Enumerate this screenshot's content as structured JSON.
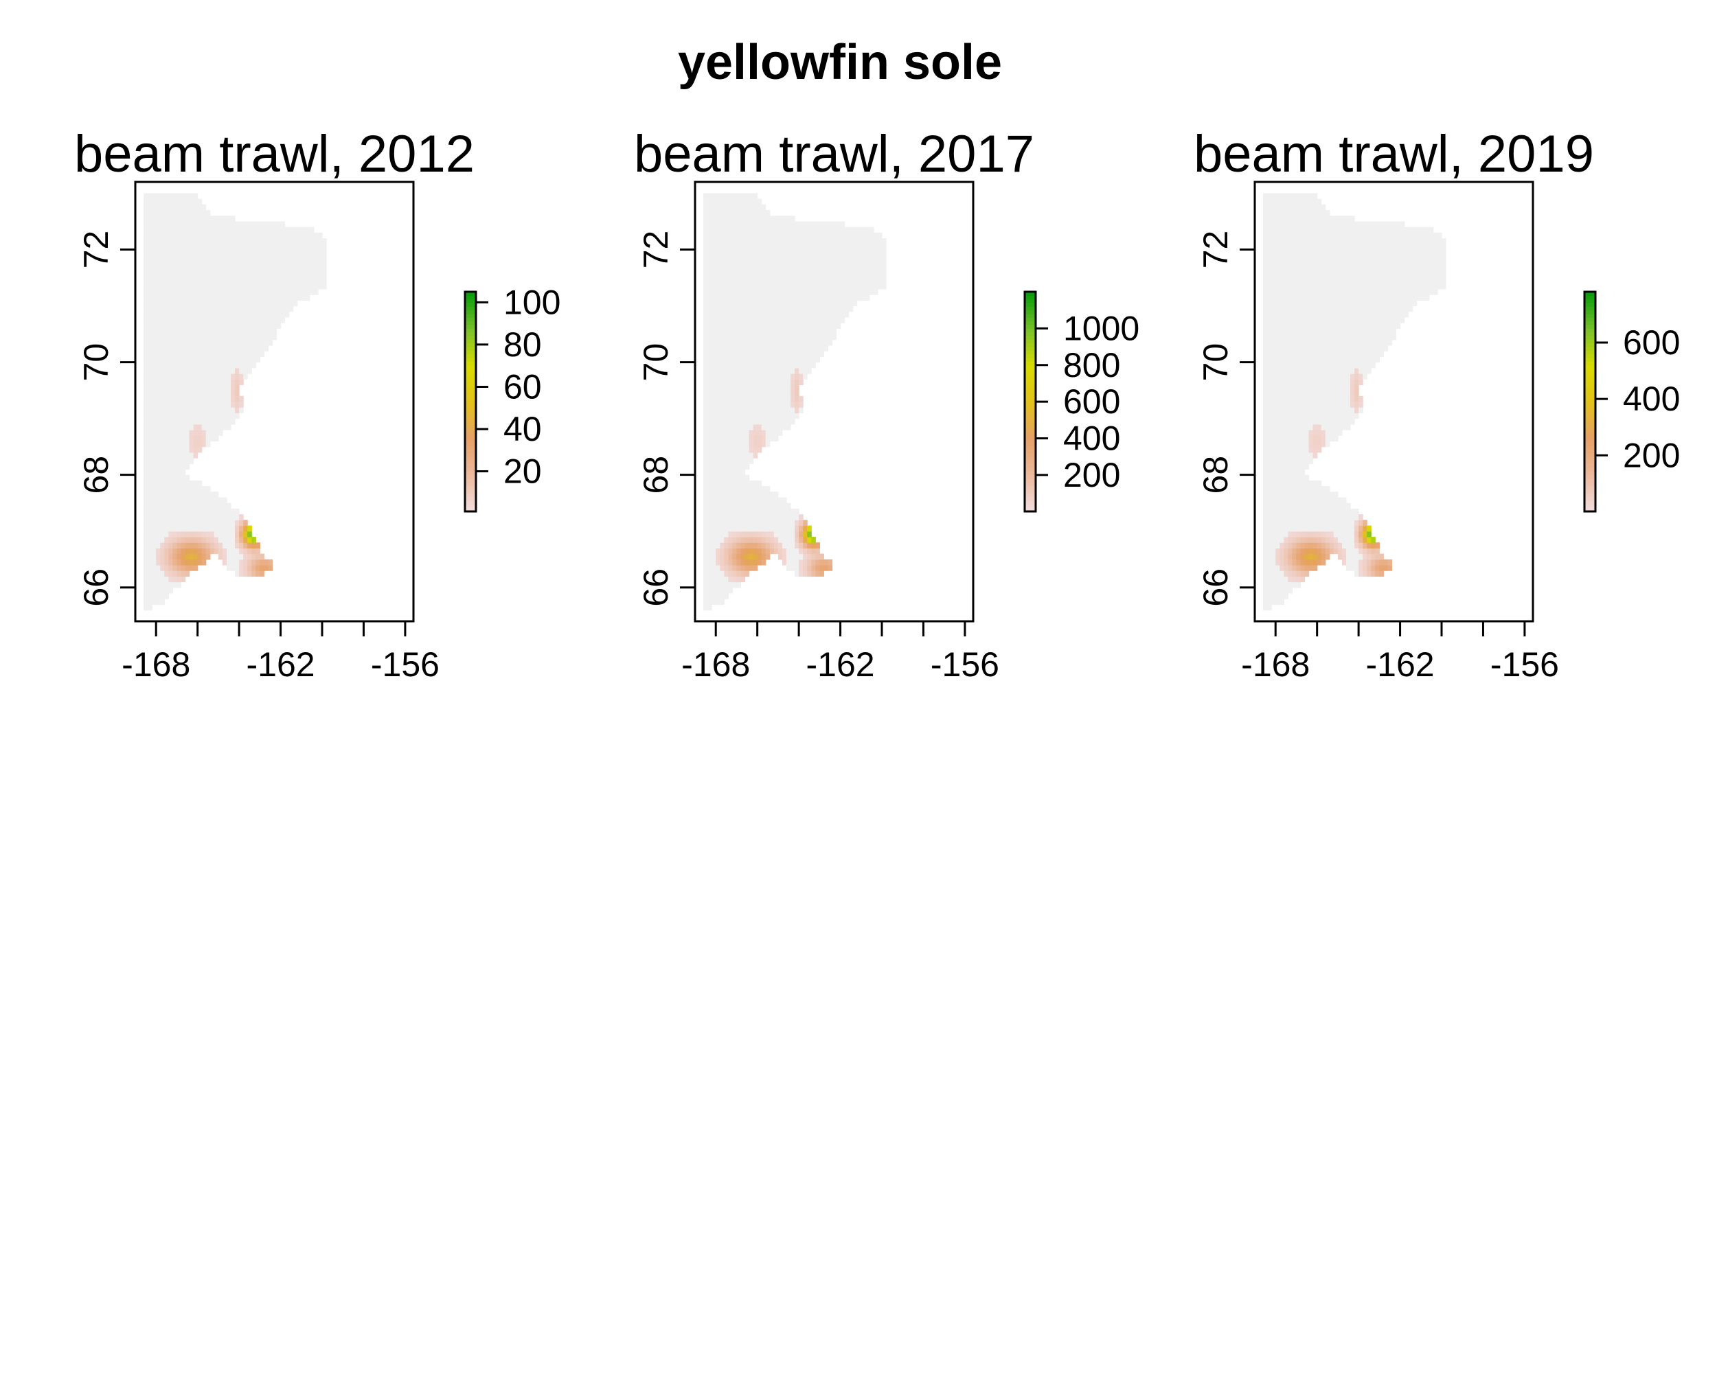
{
  "chart_data": {
    "type": "heatmap",
    "title": "yellowfin sole",
    "grid": false,
    "colors": {
      "background_cell": "#f0f0f0",
      "ramp": [
        "#f2dcdc",
        "#ebb89a",
        "#e6a066",
        "#e2c21a",
        "#d8dc00",
        "#79c12a",
        "#0a9d0a"
      ],
      "frame": "#000000"
    },
    "panels": [
      {
        "title": "beam trawl, 2012",
        "xlim": [
          -169,
          -155.6
        ],
        "ylim": [
          65.4,
          73.2
        ],
        "x_ticks": [
          -168,
          -166,
          -164,
          -162,
          -160,
          -158,
          -156
        ],
        "x_tick_labels": [
          "-168",
          "",
          "",
          "-162",
          "",
          "",
          "-156"
        ],
        "y_ticks": [
          66,
          68,
          70,
          72
        ],
        "y_tick_labels": [
          "66",
          "68",
          "70",
          "72"
        ],
        "legend": {
          "range": [
            1,
            105
          ],
          "ticks": [
            20,
            40,
            60,
            80,
            100
          ],
          "tick_labels": [
            "20",
            "40",
            "60",
            "80",
            "100"
          ]
        }
      },
      {
        "title": "beam trawl, 2017",
        "xlim": [
          -169,
          -155.6
        ],
        "ylim": [
          65.4,
          73.2
        ],
        "x_ticks": [
          -168,
          -166,
          -164,
          -162,
          -160,
          -158,
          -156
        ],
        "x_tick_labels": [
          "-168",
          "",
          "",
          "-162",
          "",
          "",
          "-156"
        ],
        "y_ticks": [
          66,
          68,
          70,
          72
        ],
        "y_tick_labels": [
          "66",
          "68",
          "70",
          "72"
        ],
        "legend": {
          "range": [
            1,
            1200
          ],
          "ticks": [
            200,
            400,
            600,
            800,
            1000
          ],
          "tick_labels": [
            "200",
            "400",
            "600",
            "800",
            "1000"
          ]
        }
      },
      {
        "title": "beam trawl, 2019",
        "xlim": [
          -169,
          -155.6
        ],
        "ylim": [
          65.4,
          73.2
        ],
        "x_ticks": [
          -168,
          -166,
          -164,
          -162,
          -160,
          -158,
          -156
        ],
        "x_tick_labels": [
          "-168",
          "",
          "",
          "-162",
          "",
          "",
          "-156"
        ],
        "y_ticks": [
          66,
          68,
          70,
          72
        ],
        "y_tick_labels": [
          "66",
          "68",
          "70",
          "72"
        ],
        "legend": {
          "range": [
            1,
            780
          ],
          "ticks": [
            200,
            400,
            600
          ],
          "tick_labels": [
            "200",
            "400",
            "600"
          ]
        }
      }
    ]
  }
}
